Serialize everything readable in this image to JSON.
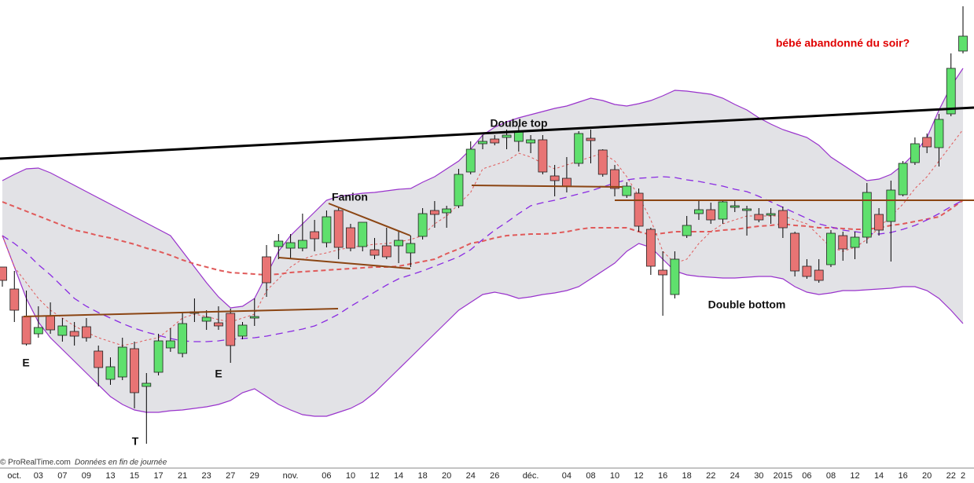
{
  "chart_data": {
    "type": "candlestick",
    "categories": [
      null,
      "oct.",
      null,
      "03",
      null,
      "07",
      null,
      "09",
      null,
      "13",
      null,
      "15",
      null,
      "17",
      null,
      "21",
      null,
      "23",
      null,
      "27",
      null,
      "29",
      null,
      null,
      "nov.",
      null,
      null,
      "06",
      null,
      "10",
      null,
      "12",
      null,
      "14",
      null,
      "18",
      null,
      "20",
      null,
      "24",
      null,
      "26",
      null,
      null,
      "déc.",
      null,
      null,
      "04",
      null,
      "08",
      null,
      "10",
      null,
      "12",
      null,
      "16",
      null,
      "18",
      null,
      "22",
      null,
      "24",
      null,
      "30",
      null,
      "2015",
      null,
      "06",
      null,
      "08",
      null,
      "12",
      null,
      "14",
      null,
      "16",
      null,
      "20",
      null,
      "22",
      "2"
    ],
    "open": [
      255,
      227,
      192,
      170,
      193,
      168,
      173,
      179,
      148,
      112,
      115,
      151,
      103,
      121,
      152,
      145,
      196,
      186,
      184,
      196,
      167,
      190,
      268,
      281,
      279,
      279,
      300,
      286,
      327,
      305,
      281,
      277,
      282,
      282,
      273,
      294,
      327,
      324,
      333,
      376,
      412,
      418,
      420,
      415,
      413,
      417,
      371,
      368,
      387,
      419,
      404,
      379,
      346,
      349,
      303,
      251,
      220,
      295,
      323,
      328,
      316,
      331,
      327,
      322,
      321,
      327,
      298,
      256,
      251,
      258,
      295,
      280,
      293,
      322,
      313,
      347,
      388,
      420,
      407,
      450,
      530
    ],
    "high": [
      255,
      250,
      225,
      205,
      210,
      190,
      185,
      190,
      155,
      140,
      165,
      160,
      120,
      170,
      177,
      197,
      215,
      200,
      205,
      202,
      185,
      215,
      283,
      297,
      297,
      323,
      315,
      327,
      330,
      310,
      312,
      292,
      305,
      300,
      295,
      330,
      339,
      333,
      380,
      415,
      423,
      423,
      430,
      435,
      423,
      423,
      385,
      395,
      428,
      430,
      405,
      385,
      363,
      355,
      305,
      275,
      275,
      320,
      340,
      337,
      341,
      340,
      333,
      330,
      330,
      332,
      300,
      265,
      265,
      302,
      300,
      300,
      362,
      330,
      365,
      390,
      420,
      425,
      450,
      527,
      587
    ],
    "low": [
      230,
      185,
      155,
      165,
      170,
      160,
      155,
      160,
      103,
      105,
      111,
      75,
      30,
      117,
      147,
      140,
      185,
      175,
      175,
      133,
      163,
      180,
      217,
      265,
      265,
      275,
      275,
      280,
      265,
      275,
      275,
      265,
      265,
      260,
      255,
      290,
      305,
      305,
      330,
      373,
      405,
      410,
      405,
      402,
      400,
      373,
      345,
      350,
      383,
      387,
      370,
      345,
      343,
      300,
      245,
      193,
      215,
      292,
      315,
      310,
      310,
      325,
      295,
      312,
      310,
      292,
      243,
      240,
      235,
      255,
      263,
      265,
      285,
      295,
      262,
      345,
      385,
      400,
      383,
      447,
      527
    ],
    "close": [
      238,
      200,
      157,
      178,
      175,
      180,
      167,
      165,
      127,
      128,
      153,
      95,
      107,
      161,
      161,
      183,
      198,
      191,
      180,
      155,
      181,
      192,
      235,
      288,
      286,
      289,
      291,
      319,
      280,
      279,
      312,
      270,
      268,
      289,
      285,
      323,
      322,
      329,
      373,
      405,
      415,
      413,
      423,
      428,
      417,
      376,
      365,
      358,
      425,
      416,
      373,
      355,
      358,
      307,
      256,
      245,
      265,
      308,
      328,
      315,
      338,
      333,
      329,
      315,
      323,
      305,
      250,
      243,
      238,
      298,
      278,
      293,
      350,
      302,
      353,
      387,
      412,
      408,
      443,
      508,
      549
    ],
    "up_color": "#5fe06d",
    "down_color": "#e87474",
    "bands": {
      "upper": [
        365,
        373,
        380,
        381,
        375,
        367,
        359,
        351,
        343,
        335,
        327,
        319,
        311,
        303,
        295,
        275,
        255,
        235,
        217,
        203,
        205,
        215,
        245,
        275,
        295,
        310,
        325,
        340,
        345,
        347,
        349,
        350,
        352,
        354,
        355,
        363,
        370,
        380,
        390,
        405,
        423,
        433,
        440,
        445,
        449,
        453,
        457,
        460,
        465,
        470,
        467,
        462,
        460,
        463,
        467,
        473,
        480,
        479,
        477,
        475,
        470,
        462,
        455,
        445,
        437,
        430,
        425,
        420,
        410,
        395,
        385,
        375,
        365,
        367,
        373,
        385,
        400,
        420,
        455,
        485,
        508
      ],
      "lower": [
        295,
        255,
        215,
        185,
        165,
        150,
        135,
        120,
        105,
        90,
        80,
        73,
        70,
        70,
        72,
        73,
        75,
        77,
        80,
        85,
        95,
        100,
        90,
        80,
        73,
        67,
        65,
        65,
        70,
        75,
        83,
        95,
        110,
        125,
        140,
        155,
        170,
        185,
        200,
        210,
        220,
        223,
        220,
        215,
        217,
        220,
        222,
        225,
        230,
        240,
        250,
        260,
        275,
        285,
        280,
        265,
        250,
        245,
        243,
        242,
        241,
        241,
        242,
        243,
        243,
        240,
        230,
        223,
        220,
        222,
        225,
        225,
        226,
        227,
        228,
        230,
        230,
        225,
        215,
        200,
        183
      ],
      "color": "#9933cc",
      "fill": "#e2e2e6"
    },
    "moving_averages": [
      {
        "color": "#e05a5a",
        "width": 1,
        "dash": "3,3",
        "values": [
          295,
          255,
          235,
          215,
          200,
          190,
          180,
          172,
          165,
          160,
          155,
          158,
          162,
          165,
          177,
          190,
          195,
          192,
          188,
          185,
          190,
          195,
          225,
          240,
          255,
          265,
          270,
          273,
          277,
          280,
          282,
          284,
          285,
          287,
          290,
          295,
          310,
          320,
          335,
          350,
          380,
          385,
          390,
          400,
          395,
          387,
          380,
          385,
          390,
          395,
          400,
          390,
          370,
          345,
          315,
          275,
          260,
          265,
          285,
          300,
          310,
          315,
          320,
          320,
          320,
          320,
          315,
          310,
          295,
          280,
          275,
          280,
          290,
          305,
          320,
          335,
          355,
          370,
          390,
          410,
          430
        ]
      },
      {
        "color": "#e05a5a",
        "width": 2,
        "dash": "6,4",
        "values": [
          338,
          332,
          326,
          320,
          314,
          308,
          302,
          299,
          295,
          292,
          288,
          284,
          279,
          275,
          270,
          264,
          259,
          255,
          251,
          248,
          247,
          246,
          245,
          246,
          248,
          249,
          250,
          251,
          252,
          253,
          254,
          255,
          255,
          256,
          259,
          262,
          265,
          272,
          278,
          285,
          288,
          292,
          295,
          296,
          297,
          297,
          298,
          300,
          303,
          305,
          305,
          305,
          305,
          300,
          296,
          298,
          300,
          300,
          300,
          300,
          302,
          303,
          305,
          307,
          308,
          310,
          308,
          307,
          305,
          305,
          304,
          303,
          303,
          305,
          308,
          310,
          313,
          316,
          319,
          329,
          340
        ]
      },
      {
        "color": "#8a2be2",
        "width": 1.3,
        "dash": "9,6",
        "values": [
          295,
          285,
          273,
          258,
          245,
          230,
          215,
          205,
          197,
          190,
          183,
          177,
          172,
          168,
          164,
          161,
          160,
          160,
          161,
          163,
          164,
          165,
          167,
          170,
          173,
          176,
          180,
          187,
          195,
          205,
          214,
          223,
          232,
          240,
          245,
          250,
          256,
          262,
          268,
          277,
          290,
          302,
          312,
          323,
          333,
          337,
          340,
          344,
          348,
          352,
          357,
          362,
          366,
          368,
          369,
          370,
          369,
          366,
          364,
          361,
          358,
          354,
          351,
          345,
          338,
          331,
          324,
          317,
          310,
          306,
          302,
          300,
          298,
          297,
          299,
          303,
          308,
          315,
          323,
          332,
          340
        ]
      }
    ],
    "ylim": [
      0,
      595
    ],
    "annotations": [
      "E",
      "E",
      "T",
      "Fanion",
      "Double top",
      "Double bottom",
      "bébé abandonné du soir?"
    ],
    "footer": {
      "source": "© ProRealTime.com",
      "note": "Données en fin de journée"
    }
  }
}
